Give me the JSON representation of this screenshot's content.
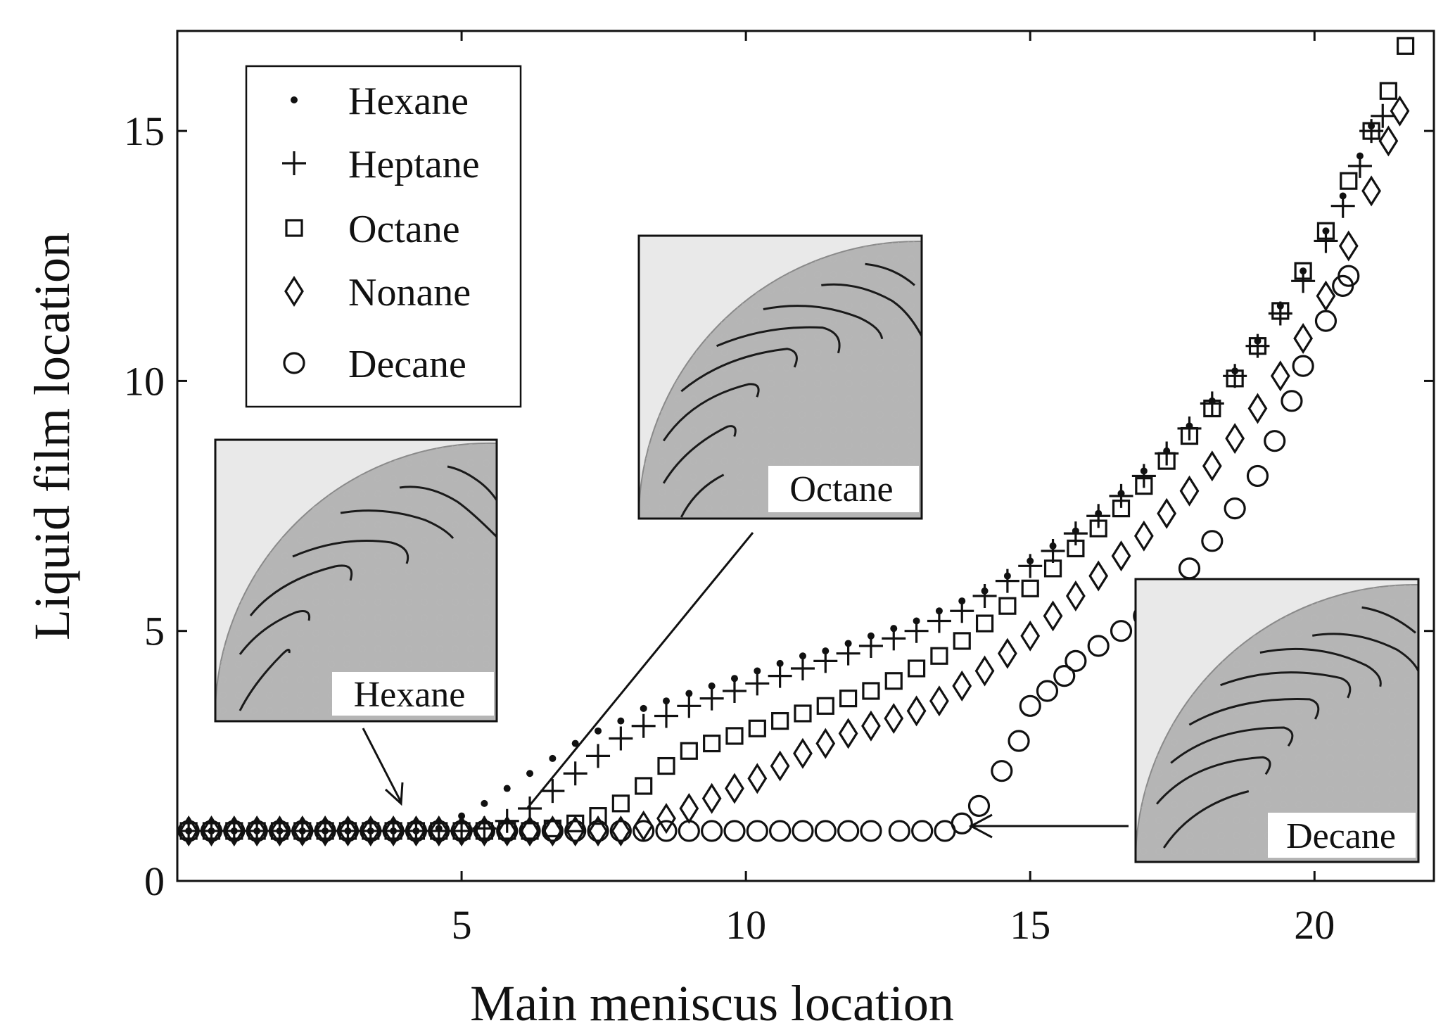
{
  "chart_data": {
    "type": "scatter",
    "title": "",
    "xlabel": "Main meniscus location",
    "ylabel": "Liquid film location",
    "xlim": [
      0,
      22.1
    ],
    "ylim": [
      0,
      17
    ],
    "xticks": [
      5,
      10,
      15,
      20
    ],
    "yticks": [
      0,
      5,
      10,
      15
    ],
    "grid": false,
    "legend_position": "top-left",
    "series": [
      {
        "name": "Hexane",
        "marker": "dot",
        "points": [
          [
            0.2,
            1
          ],
          [
            0.6,
            1
          ],
          [
            1,
            1
          ],
          [
            1.4,
            1
          ],
          [
            1.8,
            1
          ],
          [
            2.2,
            1
          ],
          [
            2.6,
            1
          ],
          [
            3,
            1
          ],
          [
            3.4,
            1
          ],
          [
            3.8,
            1
          ],
          [
            4.2,
            1
          ],
          [
            4.6,
            1.05
          ],
          [
            5,
            1.3
          ],
          [
            5.4,
            1.55
          ],
          [
            5.8,
            1.85
          ],
          [
            6.2,
            2.15
          ],
          [
            6.6,
            2.45
          ],
          [
            7,
            2.75
          ],
          [
            7.4,
            3
          ],
          [
            7.8,
            3.2
          ],
          [
            8.2,
            3.45
          ],
          [
            8.6,
            3.6
          ],
          [
            9,
            3.75
          ],
          [
            9.4,
            3.9
          ],
          [
            9.8,
            4.05
          ],
          [
            10.2,
            4.2
          ],
          [
            10.6,
            4.35
          ],
          [
            11,
            4.5
          ],
          [
            11.4,
            4.6
          ],
          [
            11.8,
            4.75
          ],
          [
            12.2,
            4.9
          ],
          [
            12.6,
            5.05
          ],
          [
            13,
            5.2
          ],
          [
            13.4,
            5.4
          ],
          [
            13.8,
            5.6
          ],
          [
            14.2,
            5.8
          ],
          [
            14.6,
            6.1
          ],
          [
            15,
            6.4
          ],
          [
            15.4,
            6.7
          ],
          [
            15.8,
            7
          ],
          [
            16.2,
            7.35
          ],
          [
            16.6,
            7.75
          ],
          [
            17,
            8.2
          ],
          [
            17.4,
            8.6
          ],
          [
            17.8,
            9.1
          ],
          [
            18.2,
            9.6
          ],
          [
            18.6,
            10.2
          ],
          [
            19,
            10.8
          ],
          [
            19.4,
            11.5
          ],
          [
            19.8,
            12.2
          ],
          [
            20.2,
            13
          ],
          [
            20.5,
            13.7
          ],
          [
            20.8,
            14.5
          ],
          [
            21,
            15.1
          ]
        ]
      },
      {
        "name": "Heptane",
        "marker": "plus",
        "points": [
          [
            0.2,
            1
          ],
          [
            0.6,
            1
          ],
          [
            1,
            1
          ],
          [
            1.4,
            1
          ],
          [
            1.8,
            1
          ],
          [
            2.2,
            1
          ],
          [
            2.6,
            1
          ],
          [
            3,
            1
          ],
          [
            3.4,
            1
          ],
          [
            3.8,
            1
          ],
          [
            4.2,
            1
          ],
          [
            4.6,
            1
          ],
          [
            5,
            1
          ],
          [
            5.4,
            1.05
          ],
          [
            5.8,
            1.2
          ],
          [
            6.2,
            1.45
          ],
          [
            6.6,
            1.8
          ],
          [
            7,
            2.15
          ],
          [
            7.4,
            2.5
          ],
          [
            7.8,
            2.85
          ],
          [
            8.2,
            3.1
          ],
          [
            8.6,
            3.3
          ],
          [
            9,
            3.5
          ],
          [
            9.4,
            3.65
          ],
          [
            9.8,
            3.8
          ],
          [
            10.2,
            3.95
          ],
          [
            10.6,
            4.1
          ],
          [
            11,
            4.25
          ],
          [
            11.4,
            4.4
          ],
          [
            11.8,
            4.55
          ],
          [
            12.2,
            4.7
          ],
          [
            12.6,
            4.85
          ],
          [
            13,
            5
          ],
          [
            13.4,
            5.2
          ],
          [
            13.8,
            5.4
          ],
          [
            14.2,
            5.7
          ],
          [
            14.6,
            6
          ],
          [
            15,
            6.3
          ],
          [
            15.4,
            6.6
          ],
          [
            15.8,
            6.95
          ],
          [
            16.2,
            7.3
          ],
          [
            16.6,
            7.7
          ],
          [
            17,
            8.1
          ],
          [
            17.4,
            8.55
          ],
          [
            17.8,
            9.05
          ],
          [
            18.2,
            9.55
          ],
          [
            18.6,
            10.1
          ],
          [
            19,
            10.7
          ],
          [
            19.4,
            11.35
          ],
          [
            19.8,
            12
          ],
          [
            20.2,
            12.8
          ],
          [
            20.5,
            13.5
          ],
          [
            20.8,
            14.3
          ],
          [
            21,
            15
          ],
          [
            21.2,
            15.3
          ]
        ]
      },
      {
        "name": "Octane",
        "marker": "square",
        "points": [
          [
            0.2,
            1
          ],
          [
            0.6,
            1
          ],
          [
            1,
            1
          ],
          [
            1.4,
            1
          ],
          [
            1.8,
            1
          ],
          [
            2.2,
            1
          ],
          [
            2.6,
            1
          ],
          [
            3,
            1
          ],
          [
            3.4,
            1
          ],
          [
            3.8,
            1
          ],
          [
            4.2,
            1
          ],
          [
            4.6,
            1
          ],
          [
            5,
            1
          ],
          [
            5.4,
            1
          ],
          [
            5.8,
            1
          ],
          [
            6.2,
            1
          ],
          [
            6.6,
            1.05
          ],
          [
            7,
            1.15
          ],
          [
            7.4,
            1.3
          ],
          [
            7.8,
            1.55
          ],
          [
            8.2,
            1.9
          ],
          [
            8.6,
            2.3
          ],
          [
            9,
            2.6
          ],
          [
            9.4,
            2.75
          ],
          [
            9.8,
            2.9
          ],
          [
            10.2,
            3.05
          ],
          [
            10.6,
            3.2
          ],
          [
            11,
            3.35
          ],
          [
            11.4,
            3.5
          ],
          [
            11.8,
            3.65
          ],
          [
            12.2,
            3.8
          ],
          [
            12.6,
            4
          ],
          [
            13,
            4.25
          ],
          [
            13.4,
            4.5
          ],
          [
            13.8,
            4.8
          ],
          [
            14.2,
            5.15
          ],
          [
            14.6,
            5.5
          ],
          [
            15,
            5.85
          ],
          [
            15.4,
            6.25
          ],
          [
            15.8,
            6.65
          ],
          [
            16.2,
            7.05
          ],
          [
            16.6,
            7.45
          ],
          [
            17,
            7.9
          ],
          [
            17.4,
            8.4
          ],
          [
            17.8,
            8.9
          ],
          [
            18.2,
            9.45
          ],
          [
            18.6,
            10.05
          ],
          [
            19,
            10.7
          ],
          [
            19.4,
            11.4
          ],
          [
            19.8,
            12.2
          ],
          [
            20.2,
            13
          ],
          [
            20.6,
            14
          ],
          [
            21,
            15
          ],
          [
            21.3,
            15.8
          ],
          [
            21.6,
            16.7
          ]
        ]
      },
      {
        "name": "Nonane",
        "marker": "diamond",
        "points": [
          [
            0.2,
            1
          ],
          [
            0.6,
            1
          ],
          [
            1,
            1
          ],
          [
            1.4,
            1
          ],
          [
            1.8,
            1
          ],
          [
            2.2,
            1
          ],
          [
            2.6,
            1
          ],
          [
            3,
            1
          ],
          [
            3.4,
            1
          ],
          [
            3.8,
            1
          ],
          [
            4.2,
            1
          ],
          [
            4.6,
            1
          ],
          [
            5,
            1
          ],
          [
            5.4,
            1
          ],
          [
            5.8,
            1
          ],
          [
            6.2,
            1
          ],
          [
            6.6,
            1
          ],
          [
            7,
            1
          ],
          [
            7.4,
            1
          ],
          [
            7.8,
            1
          ],
          [
            8.2,
            1.1
          ],
          [
            8.6,
            1.25
          ],
          [
            9,
            1.45
          ],
          [
            9.4,
            1.65
          ],
          [
            9.8,
            1.85
          ],
          [
            10.2,
            2.05
          ],
          [
            10.6,
            2.3
          ],
          [
            11,
            2.55
          ],
          [
            11.4,
            2.75
          ],
          [
            11.8,
            2.95
          ],
          [
            12.2,
            3.1
          ],
          [
            12.6,
            3.25
          ],
          [
            13,
            3.4
          ],
          [
            13.4,
            3.6
          ],
          [
            13.8,
            3.9
          ],
          [
            14.2,
            4.2
          ],
          [
            14.6,
            4.55
          ],
          [
            15,
            4.9
          ],
          [
            15.4,
            5.3
          ],
          [
            15.8,
            5.7
          ],
          [
            16.2,
            6.1
          ],
          [
            16.6,
            6.5
          ],
          [
            17,
            6.9
          ],
          [
            17.4,
            7.35
          ],
          [
            17.8,
            7.8
          ],
          [
            18.2,
            8.3
          ],
          [
            18.6,
            8.85
          ],
          [
            19,
            9.45
          ],
          [
            19.4,
            10.1
          ],
          [
            19.8,
            10.85
          ],
          [
            20.2,
            11.7
          ],
          [
            20.6,
            12.7
          ],
          [
            21,
            13.8
          ],
          [
            21.3,
            14.8
          ],
          [
            21.5,
            15.4
          ]
        ]
      },
      {
        "name": "Decane",
        "marker": "circle",
        "points": [
          [
            0.2,
            1
          ],
          [
            0.6,
            1
          ],
          [
            1,
            1
          ],
          [
            1.4,
            1
          ],
          [
            1.8,
            1
          ],
          [
            2.2,
            1
          ],
          [
            2.6,
            1
          ],
          [
            3,
            1
          ],
          [
            3.4,
            1
          ],
          [
            3.8,
            1
          ],
          [
            4.2,
            1
          ],
          [
            4.6,
            1
          ],
          [
            5,
            1
          ],
          [
            5.4,
            1
          ],
          [
            5.8,
            1
          ],
          [
            6.2,
            1
          ],
          [
            6.6,
            1
          ],
          [
            7,
            1
          ],
          [
            7.4,
            1
          ],
          [
            7.8,
            1
          ],
          [
            8.2,
            1
          ],
          [
            8.6,
            1
          ],
          [
            9,
            1
          ],
          [
            9.4,
            1
          ],
          [
            9.8,
            1
          ],
          [
            10.2,
            1
          ],
          [
            10.6,
            1
          ],
          [
            11,
            1
          ],
          [
            11.4,
            1
          ],
          [
            11.8,
            1
          ],
          [
            12.2,
            1
          ],
          [
            12.7,
            1
          ],
          [
            13.1,
            1
          ],
          [
            13.5,
            1
          ],
          [
            13.8,
            1.15
          ],
          [
            14.1,
            1.5
          ],
          [
            14.5,
            2.2
          ],
          [
            14.8,
            2.8
          ],
          [
            15,
            3.5
          ],
          [
            15.3,
            3.8
          ],
          [
            15.6,
            4.1
          ],
          [
            15.8,
            4.4
          ],
          [
            16.2,
            4.7
          ],
          [
            16.6,
            5
          ],
          [
            17,
            5.3
          ],
          [
            17.4,
            5.75
          ],
          [
            17.8,
            6.25
          ],
          [
            18.2,
            6.8
          ],
          [
            18.6,
            7.45
          ],
          [
            19,
            8.1
          ],
          [
            19.3,
            8.8
          ],
          [
            19.6,
            9.6
          ],
          [
            19.8,
            10.3
          ],
          [
            20.2,
            11.2
          ],
          [
            20.5,
            11.9
          ],
          [
            20.6,
            12.1
          ]
        ]
      }
    ],
    "annotations": [
      {
        "label": "Hexane",
        "arrow_to": [
          4.7,
          1.4
        ]
      },
      {
        "label": "Octane",
        "arrow_to": [
          6.8,
          1.3
        ]
      },
      {
        "label": "Decane",
        "arrow_to": [
          14.2,
          1.05
        ]
      }
    ]
  },
  "legend": {
    "items": [
      "Hexane",
      "Heptane",
      "Octane",
      "Nonane",
      "Decane"
    ]
  },
  "insets": {
    "hexane": "Hexane",
    "octane": "Octane",
    "decane": "Decane"
  }
}
